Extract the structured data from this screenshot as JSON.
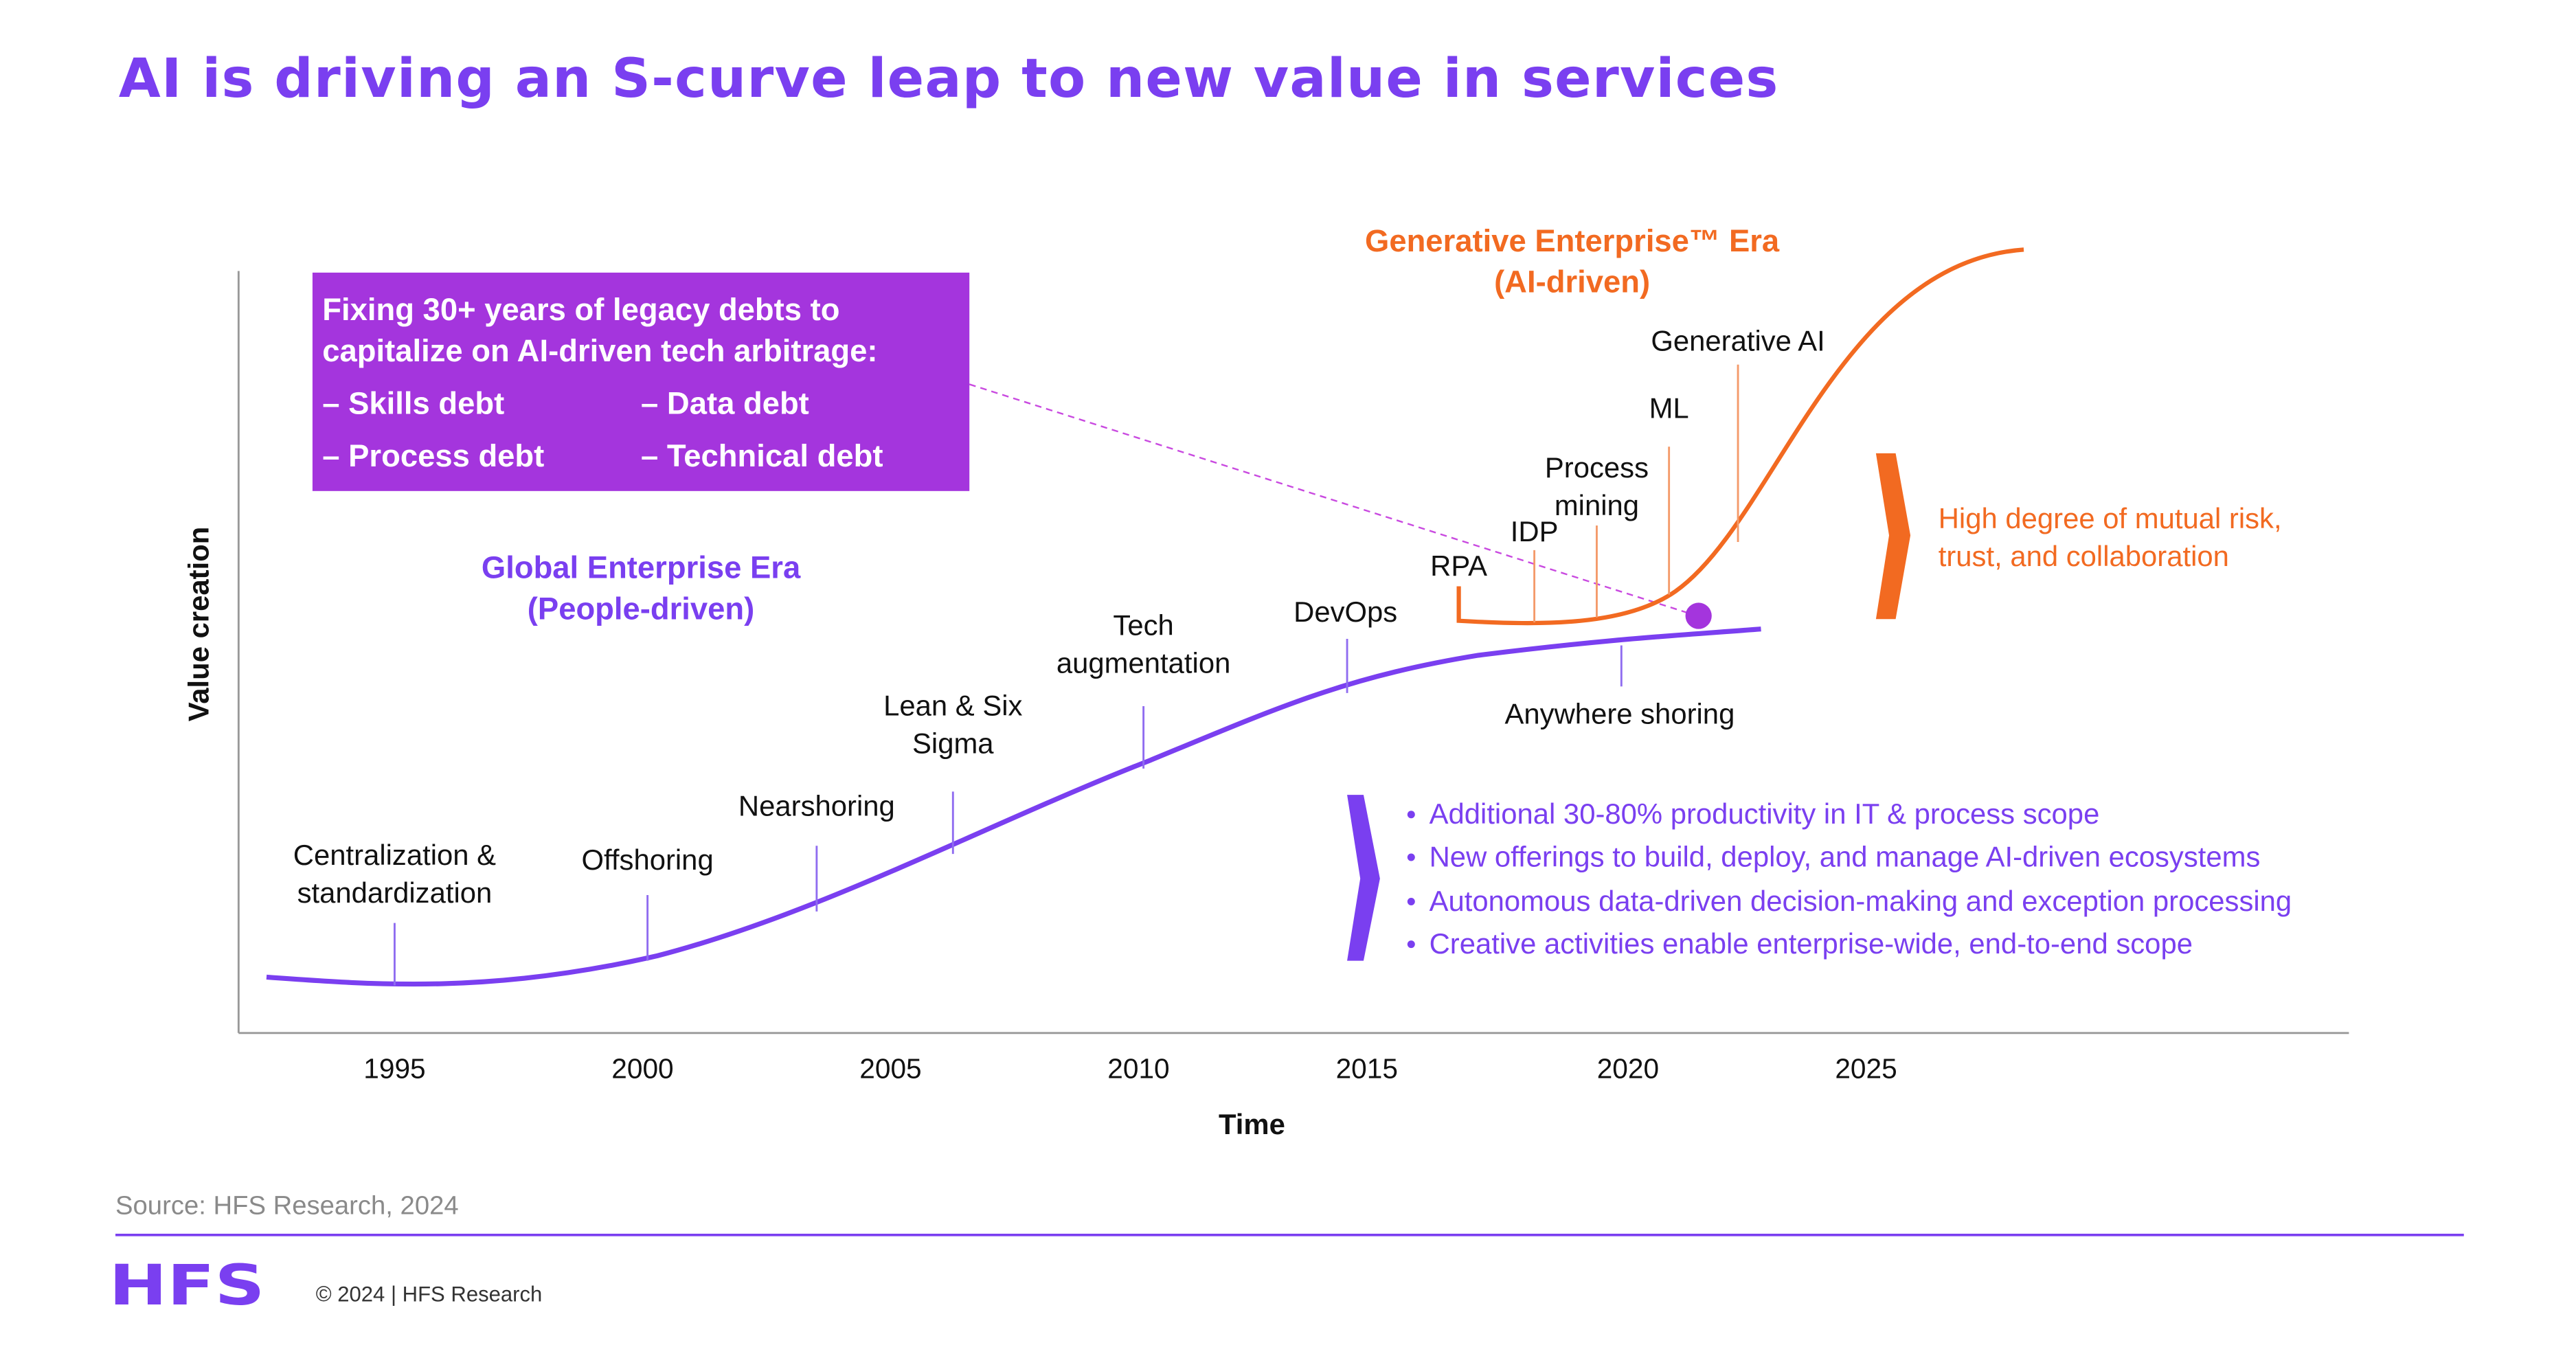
{
  "title": "AI is driving an S-curve leap to new value in services",
  "y_axis_label": "Value creation",
  "x_axis_label": "Time",
  "x_axis_years": [
    "1995",
    "2000",
    "2005",
    "2010",
    "2015",
    "2020",
    "2025"
  ],
  "callout": {
    "heading_lines": [
      "Fixing 30+ years of legacy debts to",
      "capitalize on AI-driven tech arbitrage:"
    ],
    "items": [
      "– Skills debt",
      "– Data debt",
      "– Process debt",
      "– Technical debt"
    ]
  },
  "global_era": {
    "lines": [
      "Global Enterprise Era",
      "(People-driven)"
    ]
  },
  "generative_era": {
    "lines": [
      "Generative Enterprise™ Era",
      "(AI-driven)"
    ]
  },
  "global_milestones": [
    {
      "lines": [
        "Centralization &",
        "standardization"
      ]
    },
    {
      "lines": [
        "Offshoring"
      ]
    },
    {
      "lines": [
        "Nearshoring"
      ]
    },
    {
      "lines": [
        "Lean & Six",
        "Sigma"
      ]
    },
    {
      "lines": [
        "Tech",
        "augmentation"
      ]
    },
    {
      "lines": [
        "DevOps"
      ]
    },
    {
      "lines": [
        "Anywhere shoring"
      ]
    }
  ],
  "ai_milestones": [
    {
      "lines": [
        "RPA"
      ]
    },
    {
      "lines": [
        "IDP"
      ]
    },
    {
      "lines": [
        "Process",
        "mining"
      ]
    },
    {
      "lines": [
        "ML"
      ]
    },
    {
      "lines": [
        "Generative AI"
      ]
    }
  ],
  "risk_note": {
    "lines": [
      "High degree of mutual risk,",
      "trust, and collaboration"
    ]
  },
  "benefits": [
    "Additional 30-80% productivity in IT & process scope",
    "New offerings to build, deploy, and manage AI-driven ecosystems",
    "Autonomous data-driven decision-making and exception processing",
    "Creative activities enable enterprise-wide, end-to-end scope"
  ],
  "source": "Source: HFS Research, 2024",
  "footer": {
    "logo": "HFS",
    "copyright": "© 2024 | HFS Research"
  }
}
